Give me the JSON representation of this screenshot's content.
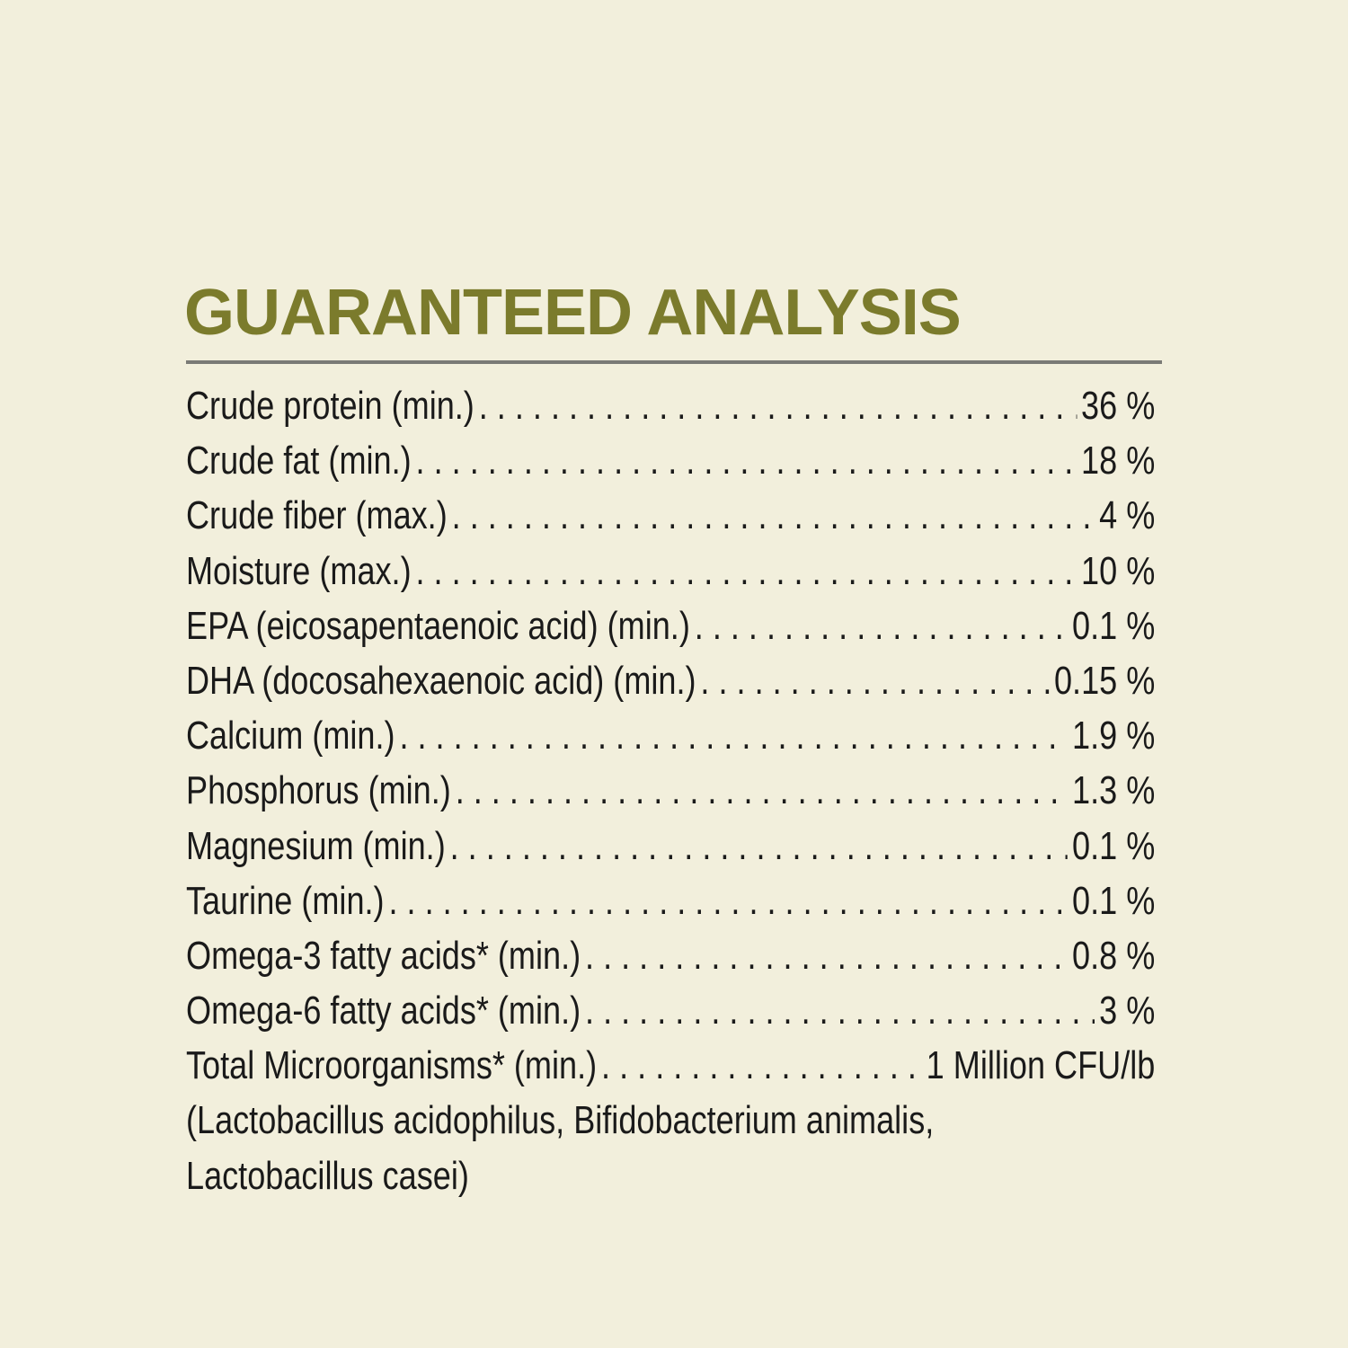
{
  "title": "GUARANTEED ANALYSIS",
  "colors": {
    "background": "#f2efdc",
    "title": "#7b7b2c",
    "rule": "#7a7a76",
    "text": "#1a1a1a"
  },
  "rows": [
    {
      "label": "Crude protein (min.)",
      "value": "36 %"
    },
    {
      "label": "Crude fat (min.)",
      "value": "18 %"
    },
    {
      "label": "Crude fiber (max.)",
      "value": "4 %"
    },
    {
      "label": "Moisture (max.)",
      "value": "10 %"
    },
    {
      "label": "EPA (eicosapentaenoic acid) (min.)",
      "value": "0.1 %"
    },
    {
      "label": "DHA (docosahexaenoic acid) (min.)",
      "value": "0.15 %"
    },
    {
      "label": "Calcium (min.)",
      "value": "1.9 %"
    },
    {
      "label": "Phosphorus (min.)",
      "value": "1.3 %"
    },
    {
      "label": "Magnesium (min.)",
      "value": "0.1 %"
    },
    {
      "label": "Taurine (min.)",
      "value": "0.1 %"
    },
    {
      "label": "Omega-3 fatty acids* (min.)",
      "value": "0.8 %"
    },
    {
      "label": "Omega-6 fatty acids* (min.)",
      "value": "3 %"
    },
    {
      "label": "Total Microorganisms* (min.)",
      "value": "1 Million CFU/lb"
    }
  ],
  "note_lines": [
    "(Lactobacillus acidophilus, Bifidobacterium animalis,",
    "Lactobacillus casei)"
  ]
}
